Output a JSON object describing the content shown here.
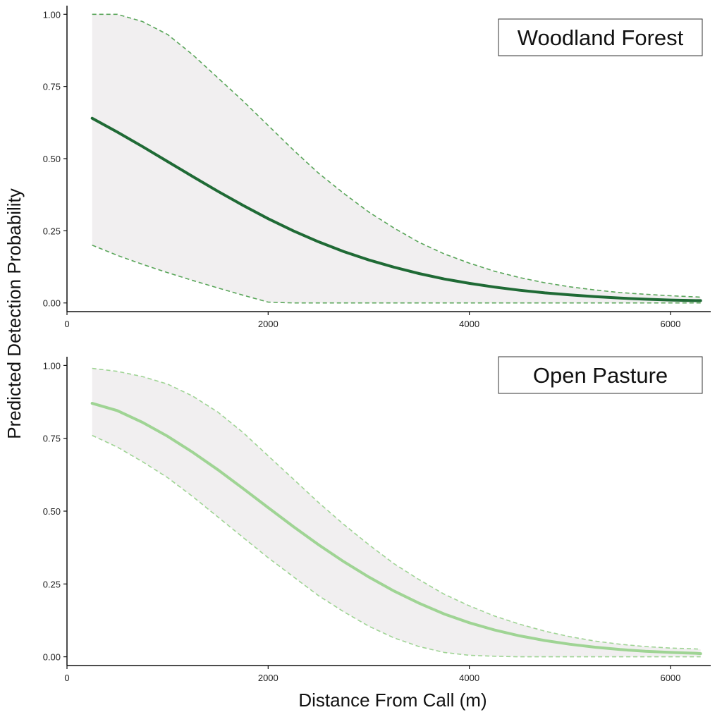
{
  "figure": {
    "xlabel": "Distance From Call (m)",
    "ylabel": "Predicted Detection Probability"
  },
  "chart_data": [
    {
      "type": "line",
      "title": "Woodland Forest",
      "xlim": [
        0,
        6400
      ],
      "ylim": [
        -0.03,
        1.03
      ],
      "xticks": [
        0,
        2000,
        4000,
        6000
      ],
      "xtick_labels": [
        "0",
        "2000",
        "4000",
        "6000"
      ],
      "yticks": [
        0,
        0.25,
        0.5,
        0.75,
        1.0
      ],
      "ytick_labels": [
        "0.00",
        "0.25",
        "0.50",
        "0.75",
        "1.00"
      ],
      "grid": false,
      "colors": {
        "line": "#1f6a35",
        "bounds": "#5aa65a",
        "band": "#f1eff0"
      },
      "series": [
        {
          "x": [
            250,
            500,
            750,
            1000,
            1250,
            1500,
            1750,
            2000,
            2250,
            2500,
            2750,
            3000,
            3250,
            3500,
            3750,
            4000,
            4250,
            4500,
            4750,
            5000,
            5250,
            5500,
            5750,
            6000,
            6250,
            6300
          ],
          "values": [
            0.64,
            0.592,
            0.542,
            0.49,
            0.438,
            0.387,
            0.338,
            0.292,
            0.25,
            0.212,
            0.178,
            0.149,
            0.124,
            0.102,
            0.083,
            0.068,
            0.055,
            0.044,
            0.035,
            0.028,
            0.022,
            0.017,
            0.013,
            0.01,
            0.008,
            0.008
          ],
          "lower": [
            0.2,
            0.165,
            0.134,
            0.105,
            0.078,
            0.052,
            0.027,
            0.003,
            0.0,
            0.0,
            0.0,
            0.0,
            0.0,
            0.0,
            0.0,
            0.0,
            0.0,
            0.0,
            0.0,
            0.0,
            0.0,
            0.0,
            0.0,
            0.0,
            0.0,
            0.0
          ],
          "upper": [
            1.0,
            1.0,
            0.975,
            0.93,
            0.86,
            0.78,
            0.7,
            0.615,
            0.53,
            0.45,
            0.38,
            0.315,
            0.26,
            0.21,
            0.17,
            0.138,
            0.11,
            0.088,
            0.07,
            0.056,
            0.045,
            0.036,
            0.03,
            0.025,
            0.021,
            0.02
          ]
        }
      ]
    },
    {
      "type": "line",
      "title": "Open Pasture",
      "xlim": [
        0,
        6400
      ],
      "ylim": [
        -0.03,
        1.03
      ],
      "xticks": [
        0,
        2000,
        4000,
        6000
      ],
      "xtick_labels": [
        "0",
        "2000",
        "4000",
        "6000"
      ],
      "yticks": [
        0,
        0.25,
        0.5,
        0.75,
        1.0
      ],
      "ytick_labels": [
        "0.00",
        "0.25",
        "0.50",
        "0.75",
        "1.00"
      ],
      "grid": false,
      "colors": {
        "line": "#9fd494",
        "bounds": "#9fd494",
        "band": "#f1eff0"
      },
      "series": [
        {
          "x": [
            250,
            500,
            750,
            1000,
            1250,
            1500,
            1750,
            2000,
            2250,
            2500,
            2750,
            3000,
            3250,
            3500,
            3750,
            4000,
            4250,
            4500,
            4750,
            5000,
            5250,
            5500,
            5750,
            6000,
            6250,
            6300
          ],
          "values": [
            0.87,
            0.845,
            0.805,
            0.757,
            0.702,
            0.642,
            0.578,
            0.512,
            0.447,
            0.385,
            0.327,
            0.274,
            0.226,
            0.184,
            0.147,
            0.117,
            0.092,
            0.072,
            0.056,
            0.043,
            0.033,
            0.025,
            0.019,
            0.015,
            0.012,
            0.011
          ],
          "lower": [
            0.76,
            0.72,
            0.67,
            0.615,
            0.55,
            0.48,
            0.41,
            0.34,
            0.275,
            0.21,
            0.155,
            0.105,
            0.065,
            0.035,
            0.015,
            0.005,
            0.002,
            0.0,
            0.0,
            0.0,
            0.0,
            0.0,
            0.0,
            0.0,
            0.0,
            0.0
          ],
          "upper": [
            0.99,
            0.98,
            0.962,
            0.936,
            0.895,
            0.84,
            0.77,
            0.69,
            0.61,
            0.53,
            0.455,
            0.385,
            0.32,
            0.265,
            0.215,
            0.175,
            0.14,
            0.112,
            0.088,
            0.069,
            0.054,
            0.043,
            0.035,
            0.03,
            0.027,
            0.026
          ]
        }
      ]
    }
  ]
}
